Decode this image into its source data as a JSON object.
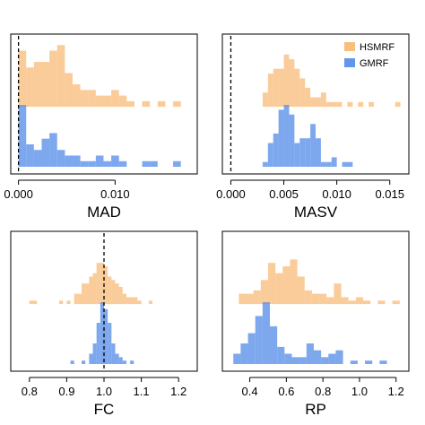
{
  "colors": {
    "hsmrf": "#F5A347",
    "gmrf": "#4C86E8",
    "hsmrf_opacity": 0.55,
    "gmrf_opacity": 0.72
  },
  "legend": {
    "placement": "top-right of MASV panel"
  },
  "chart_data": [
    {
      "type": "histogram",
      "panel": "top-left",
      "xlabel": "MAD",
      "title": "",
      "xlim": [
        -0.0008,
        0.0185
      ],
      "xticks": [
        0.0,
        0.01
      ],
      "xtick_labels": [
        "0.000",
        "0.010"
      ],
      "reference_line": 0.0,
      "grid": false,
      "series": [
        {
          "name": "HSMRF",
          "bins": [
            {
              "x0": 0.0,
              "x1": 0.0008,
              "count": 10
            },
            {
              "x0": 0.0008,
              "x1": 0.0016,
              "count": 7
            },
            {
              "x0": 0.0016,
              "x1": 0.0024,
              "count": 8
            },
            {
              "x0": 0.0024,
              "x1": 0.0032,
              "count": 8
            },
            {
              "x0": 0.0032,
              "x1": 0.004,
              "count": 10
            },
            {
              "x0": 0.004,
              "x1": 0.0048,
              "count": 11
            },
            {
              "x0": 0.0048,
              "x1": 0.0056,
              "count": 6
            },
            {
              "x0": 0.0056,
              "x1": 0.0064,
              "count": 4
            },
            {
              "x0": 0.0064,
              "x1": 0.0072,
              "count": 3
            },
            {
              "x0": 0.0072,
              "x1": 0.008,
              "count": 3
            },
            {
              "x0": 0.008,
              "x1": 0.0088,
              "count": 2
            },
            {
              "x0": 0.0088,
              "x1": 0.0096,
              "count": 2
            },
            {
              "x0": 0.0096,
              "x1": 0.0104,
              "count": 3
            },
            {
              "x0": 0.0104,
              "x1": 0.0112,
              "count": 2
            },
            {
              "x0": 0.0112,
              "x1": 0.012,
              "count": 1
            },
            {
              "x0": 0.0128,
              "x1": 0.0136,
              "count": 1
            },
            {
              "x0": 0.0144,
              "x1": 0.0152,
              "count": 1
            },
            {
              "x0": 0.016,
              "x1": 0.0168,
              "count": 1
            }
          ]
        },
        {
          "name": "GMRF",
          "bins": [
            {
              "x0": 0.0,
              "x1": 0.0008,
              "count": 11
            },
            {
              "x0": 0.0008,
              "x1": 0.0016,
              "count": 4
            },
            {
              "x0": 0.0016,
              "x1": 0.0024,
              "count": 3
            },
            {
              "x0": 0.0024,
              "x1": 0.0032,
              "count": 5
            },
            {
              "x0": 0.0032,
              "x1": 0.004,
              "count": 6
            },
            {
              "x0": 0.004,
              "x1": 0.0048,
              "count": 3
            },
            {
              "x0": 0.0048,
              "x1": 0.0056,
              "count": 2
            },
            {
              "x0": 0.0056,
              "x1": 0.0064,
              "count": 2
            },
            {
              "x0": 0.0064,
              "x1": 0.0072,
              "count": 1
            },
            {
              "x0": 0.0072,
              "x1": 0.008,
              "count": 1
            },
            {
              "x0": 0.008,
              "x1": 0.0088,
              "count": 2
            },
            {
              "x0": 0.0088,
              "x1": 0.0096,
              "count": 1
            },
            {
              "x0": 0.0096,
              "x1": 0.0104,
              "count": 2
            },
            {
              "x0": 0.0104,
              "x1": 0.0112,
              "count": 1
            },
            {
              "x0": 0.0128,
              "x1": 0.0136,
              "count": 1
            },
            {
              "x0": 0.0136,
              "x1": 0.0144,
              "count": 1
            },
            {
              "x0": 0.016,
              "x1": 0.0168,
              "count": 1
            }
          ]
        }
      ]
    },
    {
      "type": "histogram",
      "panel": "top-right",
      "xlabel": "MASV",
      "title": "",
      "xlim": [
        -0.0008,
        0.0168
      ],
      "xticks": [
        0.0,
        0.005,
        0.01,
        0.015
      ],
      "xtick_labels": [
        "0.000",
        "0.005",
        "0.010",
        "0.015"
      ],
      "reference_line": 0.0,
      "grid": false,
      "series": [
        {
          "name": "HSMRF",
          "bins": [
            {
              "x0": 0.003,
              "x1": 0.0035,
              "count": 3
            },
            {
              "x0": 0.0035,
              "x1": 0.004,
              "count": 7
            },
            {
              "x0": 0.004,
              "x1": 0.0045,
              "count": 8
            },
            {
              "x0": 0.0045,
              "x1": 0.005,
              "count": 8
            },
            {
              "x0": 0.005,
              "x1": 0.0055,
              "count": 11
            },
            {
              "x0": 0.0055,
              "x1": 0.006,
              "count": 10
            },
            {
              "x0": 0.006,
              "x1": 0.0065,
              "count": 8
            },
            {
              "x0": 0.0065,
              "x1": 0.007,
              "count": 6
            },
            {
              "x0": 0.007,
              "x1": 0.0075,
              "count": 4
            },
            {
              "x0": 0.0075,
              "x1": 0.008,
              "count": 2
            },
            {
              "x0": 0.008,
              "x1": 0.0085,
              "count": 2
            },
            {
              "x0": 0.0085,
              "x1": 0.009,
              "count": 3
            },
            {
              "x0": 0.009,
              "x1": 0.0095,
              "count": 1
            },
            {
              "x0": 0.0095,
              "x1": 0.01,
              "count": 1
            },
            {
              "x0": 0.01,
              "x1": 0.0105,
              "count": 1
            },
            {
              "x0": 0.011,
              "x1": 0.0115,
              "count": 1
            },
            {
              "x0": 0.012,
              "x1": 0.0125,
              "count": 1
            },
            {
              "x0": 0.013,
              "x1": 0.0135,
              "count": 1
            },
            {
              "x0": 0.0155,
              "x1": 0.016,
              "count": 1
            }
          ]
        },
        {
          "name": "GMRF",
          "bins": [
            {
              "x0": 0.003,
              "x1": 0.0035,
              "count": 1
            },
            {
              "x0": 0.0035,
              "x1": 0.004,
              "count": 5
            },
            {
              "x0": 0.004,
              "x1": 0.0045,
              "count": 7
            },
            {
              "x0": 0.0045,
              "x1": 0.005,
              "count": 12
            },
            {
              "x0": 0.005,
              "x1": 0.0055,
              "count": 13
            },
            {
              "x0": 0.0055,
              "x1": 0.006,
              "count": 11
            },
            {
              "x0": 0.006,
              "x1": 0.0065,
              "count": 5
            },
            {
              "x0": 0.0065,
              "x1": 0.007,
              "count": 6
            },
            {
              "x0": 0.007,
              "x1": 0.0075,
              "count": 6
            },
            {
              "x0": 0.0075,
              "x1": 0.008,
              "count": 9
            },
            {
              "x0": 0.008,
              "x1": 0.0085,
              "count": 6
            },
            {
              "x0": 0.0085,
              "x1": 0.009,
              "count": 1
            },
            {
              "x0": 0.009,
              "x1": 0.0095,
              "count": 1
            },
            {
              "x0": 0.0095,
              "x1": 0.01,
              "count": 2
            },
            {
              "x0": 0.0105,
              "x1": 0.011,
              "count": 1
            },
            {
              "x0": 0.011,
              "x1": 0.0115,
              "count": 1
            }
          ]
        }
      ]
    },
    {
      "type": "histogram",
      "panel": "bottom-left",
      "xlabel": "FC",
      "title": "",
      "xlim": [
        0.75,
        1.25
      ],
      "xticks": [
        0.8,
        0.9,
        1.0,
        1.1,
        1.2
      ],
      "xtick_labels": [
        "0.8",
        "0.9",
        "1.0",
        "1.1",
        "1.2"
      ],
      "reference_line": 1.0,
      "grid": false,
      "series": [
        {
          "name": "HSMRF",
          "bins": [
            {
              "x0": 0.8,
              "x1": 0.81,
              "count": 1
            },
            {
              "x0": 0.81,
              "x1": 0.82,
              "count": 1
            },
            {
              "x0": 0.88,
              "x1": 0.89,
              "count": 1
            },
            {
              "x0": 0.9,
              "x1": 0.91,
              "count": 1
            },
            {
              "x0": 0.92,
              "x1": 0.93,
              "count": 3
            },
            {
              "x0": 0.93,
              "x1": 0.94,
              "count": 3
            },
            {
              "x0": 0.94,
              "x1": 0.95,
              "count": 6
            },
            {
              "x0": 0.95,
              "x1": 0.96,
              "count": 6
            },
            {
              "x0": 0.96,
              "x1": 0.97,
              "count": 8
            },
            {
              "x0": 0.97,
              "x1": 0.98,
              "count": 9
            },
            {
              "x0": 0.98,
              "x1": 0.99,
              "count": 12
            },
            {
              "x0": 0.99,
              "x1": 1.0,
              "count": 12
            },
            {
              "x0": 1.0,
              "x1": 1.01,
              "count": 11
            },
            {
              "x0": 1.01,
              "x1": 1.02,
              "count": 8
            },
            {
              "x0": 1.02,
              "x1": 1.03,
              "count": 7
            },
            {
              "x0": 1.03,
              "x1": 1.04,
              "count": 6
            },
            {
              "x0": 1.04,
              "x1": 1.05,
              "count": 5
            },
            {
              "x0": 1.05,
              "x1": 1.06,
              "count": 3
            },
            {
              "x0": 1.06,
              "x1": 1.07,
              "count": 2
            },
            {
              "x0": 1.07,
              "x1": 1.08,
              "count": 2
            },
            {
              "x0": 1.08,
              "x1": 1.09,
              "count": 2
            },
            {
              "x0": 1.09,
              "x1": 1.1,
              "count": 1
            },
            {
              "x0": 1.12,
              "x1": 1.13,
              "count": 1
            }
          ]
        },
        {
          "name": "GMRF",
          "bins": [
            {
              "x0": 0.91,
              "x1": 0.92,
              "count": 1
            },
            {
              "x0": 0.94,
              "x1": 0.95,
              "count": 1
            },
            {
              "x0": 0.96,
              "x1": 0.97,
              "count": 3
            },
            {
              "x0": 0.97,
              "x1": 0.98,
              "count": 6
            },
            {
              "x0": 0.98,
              "x1": 0.99,
              "count": 12
            },
            {
              "x0": 0.99,
              "x1": 1.0,
              "count": 18
            },
            {
              "x0": 1.0,
              "x1": 1.01,
              "count": 16
            },
            {
              "x0": 1.01,
              "x1": 1.02,
              "count": 12
            },
            {
              "x0": 1.02,
              "x1": 1.03,
              "count": 6
            },
            {
              "x0": 1.03,
              "x1": 1.04,
              "count": 3
            },
            {
              "x0": 1.04,
              "x1": 1.05,
              "count": 2
            },
            {
              "x0": 1.05,
              "x1": 1.06,
              "count": 1
            },
            {
              "x0": 1.07,
              "x1": 1.08,
              "count": 1
            }
          ]
        }
      ]
    },
    {
      "type": "histogram",
      "panel": "bottom-right",
      "xlabel": "RP",
      "title": "",
      "xlim": [
        0.25,
        1.27
      ],
      "xticks": [
        0.4,
        0.6,
        0.8,
        1.0,
        1.2
      ],
      "xtick_labels": [
        "0.4",
        "0.6",
        "0.8",
        "1.0",
        "1.2"
      ],
      "reference_line": null,
      "grid": false,
      "series": [
        {
          "name": "HSMRF",
          "bins": [
            {
              "x0": 0.34,
              "x1": 0.38,
              "count": 3
            },
            {
              "x0": 0.38,
              "x1": 0.42,
              "count": 3
            },
            {
              "x0": 0.42,
              "x1": 0.46,
              "count": 4
            },
            {
              "x0": 0.46,
              "x1": 0.5,
              "count": 7
            },
            {
              "x0": 0.5,
              "x1": 0.54,
              "count": 12
            },
            {
              "x0": 0.54,
              "x1": 0.58,
              "count": 9
            },
            {
              "x0": 0.58,
              "x1": 0.62,
              "count": 11
            },
            {
              "x0": 0.62,
              "x1": 0.66,
              "count": 13
            },
            {
              "x0": 0.66,
              "x1": 0.7,
              "count": 8
            },
            {
              "x0": 0.7,
              "x1": 0.74,
              "count": 4
            },
            {
              "x0": 0.74,
              "x1": 0.78,
              "count": 3
            },
            {
              "x0": 0.78,
              "x1": 0.82,
              "count": 3
            },
            {
              "x0": 0.82,
              "x1": 0.86,
              "count": 2
            },
            {
              "x0": 0.86,
              "x1": 0.9,
              "count": 6
            },
            {
              "x0": 0.9,
              "x1": 0.94,
              "count": 2
            },
            {
              "x0": 0.94,
              "x1": 0.98,
              "count": 1
            },
            {
              "x0": 0.98,
              "x1": 1.02,
              "count": 2
            },
            {
              "x0": 1.02,
              "x1": 1.06,
              "count": 1
            },
            {
              "x0": 1.1,
              "x1": 1.14,
              "count": 1
            },
            {
              "x0": 1.18,
              "x1": 1.22,
              "count": 1
            }
          ]
        },
        {
          "name": "GMRF",
          "bins": [
            {
              "x0": 0.31,
              "x1": 0.35,
              "count": 3
            },
            {
              "x0": 0.35,
              "x1": 0.39,
              "count": 6
            },
            {
              "x0": 0.39,
              "x1": 0.43,
              "count": 9
            },
            {
              "x0": 0.43,
              "x1": 0.47,
              "count": 14
            },
            {
              "x0": 0.47,
              "x1": 0.51,
              "count": 18
            },
            {
              "x0": 0.51,
              "x1": 0.55,
              "count": 11
            },
            {
              "x0": 0.55,
              "x1": 0.59,
              "count": 5
            },
            {
              "x0": 0.59,
              "x1": 0.63,
              "count": 3
            },
            {
              "x0": 0.63,
              "x1": 0.67,
              "count": 2
            },
            {
              "x0": 0.67,
              "x1": 0.71,
              "count": 2
            },
            {
              "x0": 0.71,
              "x1": 0.75,
              "count": 6
            },
            {
              "x0": 0.75,
              "x1": 0.79,
              "count": 4
            },
            {
              "x0": 0.79,
              "x1": 0.83,
              "count": 2
            },
            {
              "x0": 0.83,
              "x1": 0.87,
              "count": 3
            },
            {
              "x0": 0.87,
              "x1": 0.91,
              "count": 4
            },
            {
              "x0": 0.95,
              "x1": 0.99,
              "count": 1
            },
            {
              "x0": 1.03,
              "x1": 1.07,
              "count": 1
            },
            {
              "x0": 1.11,
              "x1": 1.15,
              "count": 1
            }
          ]
        }
      ]
    }
  ]
}
